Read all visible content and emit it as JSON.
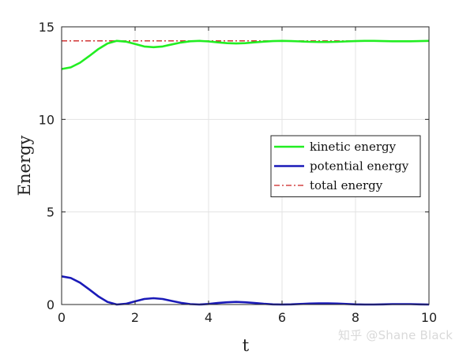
{
  "chart_data": {
    "type": "line",
    "xlabel": "t",
    "ylabel": "Energy",
    "xlim": [
      0,
      10
    ],
    "ylim": [
      0,
      15
    ],
    "xticks": [
      0,
      2,
      4,
      6,
      8,
      10
    ],
    "yticks": [
      0,
      5,
      10,
      15
    ],
    "grid": true,
    "legend_position": "right",
    "x": [
      0,
      0.25,
      0.5,
      0.75,
      1.0,
      1.25,
      1.5,
      1.75,
      2.0,
      2.25,
      2.5,
      2.75,
      3.0,
      3.25,
      3.5,
      3.75,
      4.0,
      4.25,
      4.5,
      4.75,
      5.0,
      5.25,
      5.5,
      5.75,
      6.0,
      6.25,
      6.5,
      6.75,
      7.0,
      7.25,
      7.5,
      7.75,
      8.0,
      8.25,
      8.5,
      8.75,
      9.0,
      9.25,
      9.5,
      9.75,
      10.0
    ],
    "series": [
      {
        "name": "kinetic energy",
        "color": "#22ee22",
        "style": "solid",
        "values": [
          12.72,
          12.81,
          13.06,
          13.42,
          13.8,
          14.1,
          14.24,
          14.2,
          14.07,
          13.94,
          13.9,
          13.94,
          14.05,
          14.15,
          14.22,
          14.24,
          14.21,
          14.16,
          14.12,
          14.1,
          14.12,
          14.16,
          14.2,
          14.23,
          14.24,
          14.23,
          14.21,
          14.19,
          14.18,
          14.18,
          14.19,
          14.21,
          14.23,
          14.24,
          14.24,
          14.23,
          14.22,
          14.22,
          14.22,
          14.23,
          14.24
        ]
      },
      {
        "name": "potential energy",
        "color": "#1a1ab8",
        "style": "solid",
        "values": [
          1.52,
          1.43,
          1.18,
          0.82,
          0.44,
          0.14,
          0.0,
          0.04,
          0.17,
          0.3,
          0.34,
          0.3,
          0.19,
          0.09,
          0.02,
          0.0,
          0.03,
          0.08,
          0.12,
          0.14,
          0.12,
          0.08,
          0.04,
          0.01,
          0.0,
          0.01,
          0.03,
          0.05,
          0.06,
          0.06,
          0.05,
          0.03,
          0.01,
          0.0,
          0.0,
          0.01,
          0.02,
          0.02,
          0.02,
          0.01,
          0.0
        ]
      },
      {
        "name": "total energy",
        "color": "#cc2222",
        "style": "dashdot",
        "values": [
          14.24,
          14.24,
          14.24,
          14.24,
          14.24,
          14.24,
          14.24,
          14.24,
          14.24,
          14.24,
          14.24,
          14.24,
          14.24,
          14.24,
          14.24,
          14.24,
          14.24,
          14.24,
          14.24,
          14.24,
          14.24,
          14.24,
          14.24,
          14.24,
          14.24,
          14.24,
          14.24,
          14.24,
          14.24,
          14.24,
          14.24,
          14.24,
          14.24,
          14.24,
          14.24,
          14.24,
          14.24,
          14.24,
          14.24,
          14.24,
          14.24
        ]
      }
    ]
  },
  "watermark": "知乎 @Shane Black"
}
